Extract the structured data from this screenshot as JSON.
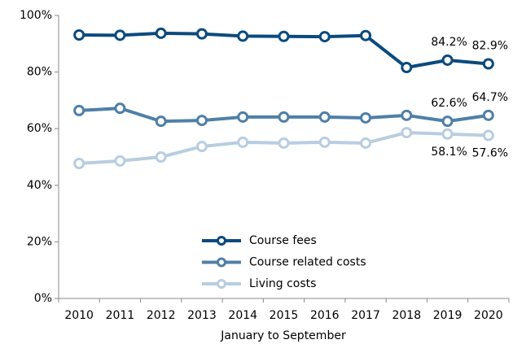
{
  "chart_data": {
    "type": "line",
    "xlabel": "January to September",
    "categories": [
      "2010",
      "2011",
      "2012",
      "2013",
      "2014",
      "2015",
      "2016",
      "2017",
      "2018",
      "2019",
      "2020"
    ],
    "series": [
      {
        "name": "Course fees",
        "color": "#0b4a7e",
        "values": [
          93.1,
          93.0,
          93.7,
          93.5,
          92.7,
          92.6,
          92.5,
          92.9,
          81.6,
          84.2,
          82.9
        ],
        "value_labels": [
          null,
          null,
          null,
          null,
          null,
          null,
          null,
          null,
          null,
          "84.2%",
          "82.9%"
        ]
      },
      {
        "name": "Course related costs",
        "color": "#4f7fa8",
        "values": [
          66.4,
          67.2,
          62.6,
          62.9,
          64.1,
          64.1,
          64.1,
          63.8,
          64.7,
          62.6,
          64.7
        ],
        "value_labels": [
          null,
          null,
          null,
          null,
          null,
          null,
          null,
          null,
          null,
          "62.6%",
          "64.7%"
        ]
      },
      {
        "name": "Living costs",
        "color": "#b8cde0",
        "values": [
          47.7,
          48.6,
          50.0,
          53.7,
          55.2,
          54.9,
          55.2,
          54.9,
          58.6,
          58.1,
          57.6
        ],
        "value_labels": [
          null,
          null,
          null,
          null,
          null,
          null,
          null,
          null,
          null,
          "58.1%",
          "57.6%"
        ]
      }
    ],
    "ylim": [
      0,
      100
    ],
    "yticks": [
      {
        "value": 0,
        "label": "0%"
      },
      {
        "value": 20,
        "label": "20%"
      },
      {
        "value": 40,
        "label": "40%"
      },
      {
        "value": 60,
        "label": "60%"
      },
      {
        "value": 80,
        "label": "80%"
      },
      {
        "value": 100,
        "label": "100%"
      }
    ],
    "grid": false,
    "legend": "lower center"
  }
}
